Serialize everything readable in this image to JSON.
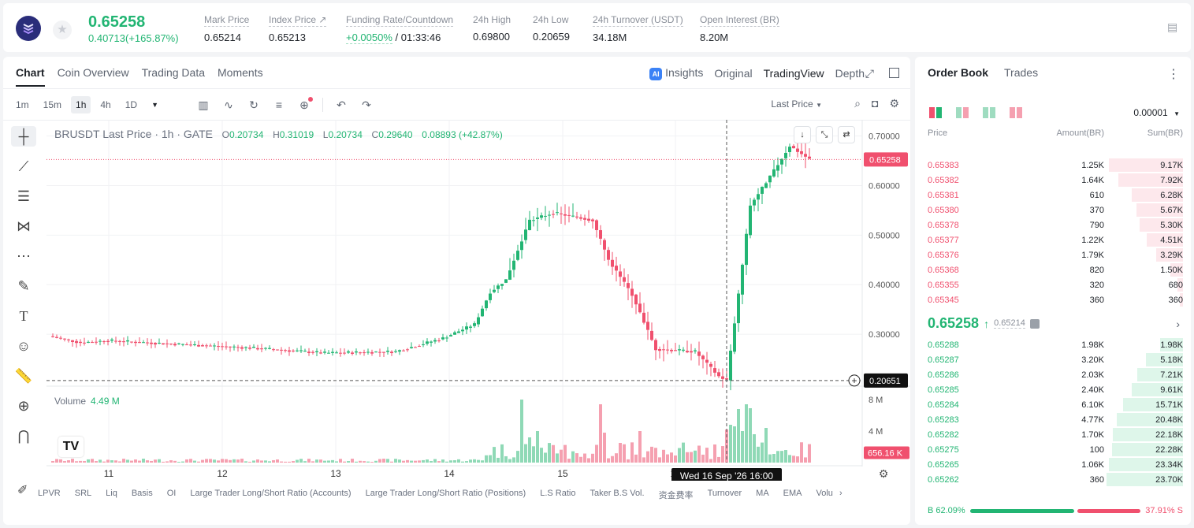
{
  "ticker": {
    "last_price": "0.65258",
    "change": "0.40713(+165.87%)",
    "stats": [
      {
        "label": "Mark Price",
        "value": "0.65214"
      },
      {
        "label": "Index Price ↗",
        "value": "0.65213"
      },
      {
        "label": "Funding Rate/Countdown",
        "value_rate": "+0.0050%",
        "value_count": " / 01:33:46"
      },
      {
        "label": "24h High",
        "value": "0.69800"
      },
      {
        "label": "24h Low",
        "value": "0.20659"
      },
      {
        "label": "24h Turnover (USDT)",
        "value": "34.18M"
      },
      {
        "label": "Open Interest (BR)",
        "value": "8.20M"
      }
    ]
  },
  "chart_tabs": [
    "Chart",
    "Coin Overview",
    "Trading Data",
    "Moments"
  ],
  "view_tabs": {
    "insights": "Insights",
    "original": "Original",
    "tradingview": "TradingView",
    "depth": "Depth"
  },
  "timeframes": [
    "1m",
    "15m",
    "1h",
    "4h",
    "1D"
  ],
  "last_price_select": "Last Price",
  "legend": {
    "title": "BRUSDT Last Price · 1h · GATE",
    "o_label": "O",
    "o": "0.20734",
    "h_label": "H",
    "h": "0.31019",
    "l_label": "L",
    "l": "0.20734",
    "c_label": "C",
    "c": "0.29640",
    "chg": "0.08893 (+42.87%)"
  },
  "volume_legend": {
    "label": "Volume",
    "value": "4.49 M"
  },
  "crosshair_label": "Wed 16 Sep '26   16:00",
  "bottom_indicators": [
    "LPVR",
    "SRL",
    "Liq",
    "Basis",
    "OI",
    "Large Trader Long/Short Ratio (Accounts)",
    "Large Trader Long/Short Ratio (Positions)",
    "L.S Ratio",
    "Taker B.S Vol.",
    "资金费率",
    "Turnover",
    "MA",
    "EMA",
    "Volu"
  ],
  "colors": {
    "up": "#22b573",
    "down": "#f0506e",
    "up_soft": "#8fd9b6",
    "down_soft": "#f5a0b0"
  },
  "chart_data": {
    "type": "candlestick",
    "x_ticks": [
      "11",
      "12",
      "13",
      "14",
      "15",
      "16"
    ],
    "y_ticks": [
      "0.70000",
      "0.60000",
      "0.50000",
      "0.40000",
      "0.30000"
    ],
    "ylim": [
      0.2,
      0.72
    ],
    "volume_ticks": [
      "8 M",
      "4 M"
    ],
    "volume_ylim": [
      0,
      9.5
    ],
    "last_price_label": "0.65258",
    "crosshair_price_label": "0.20651",
    "volume_last_label": "656.16 K",
    "segments": [
      {
        "from": 0,
        "to": 8,
        "start": 0.296,
        "end": 0.283
      },
      {
        "from": 8,
        "to": 15,
        "start": 0.283,
        "end": 0.287
      },
      {
        "from": 15,
        "to": 30,
        "start": 0.287,
        "end": 0.281
      },
      {
        "from": 30,
        "to": 50,
        "start": 0.281,
        "end": 0.273
      },
      {
        "from": 50,
        "to": 70,
        "start": 0.273,
        "end": 0.262
      },
      {
        "from": 70,
        "to": 88,
        "start": 0.262,
        "end": 0.265
      },
      {
        "from": 88,
        "to": 100,
        "start": 0.265,
        "end": 0.292
      },
      {
        "from": 100,
        "to": 108,
        "start": 0.292,
        "end": 0.32
      },
      {
        "from": 108,
        "to": 112,
        "start": 0.32,
        "end": 0.385
      },
      {
        "from": 112,
        "to": 116,
        "start": 0.385,
        "end": 0.41
      },
      {
        "from": 116,
        "to": 122,
        "start": 0.41,
        "end": 0.53
      },
      {
        "from": 122,
        "to": 128,
        "start": 0.53,
        "end": 0.545
      },
      {
        "from": 128,
        "to": 138,
        "start": 0.545,
        "end": 0.53
      },
      {
        "from": 138,
        "to": 142,
        "start": 0.53,
        "end": 0.45
      },
      {
        "from": 142,
        "to": 148,
        "start": 0.45,
        "end": 0.38
      },
      {
        "from": 148,
        "to": 154,
        "start": 0.38,
        "end": 0.27
      },
      {
        "from": 154,
        "to": 164,
        "start": 0.27,
        "end": 0.265
      },
      {
        "from": 164,
        "to": 170,
        "start": 0.265,
        "end": 0.215
      },
      {
        "from": 170,
        "to": 172,
        "start": 0.215,
        "end": 0.207
      },
      {
        "from": 172,
        "to": 175,
        "start": 0.207,
        "end": 0.38
      },
      {
        "from": 175,
        "to": 178,
        "start": 0.38,
        "end": 0.56
      },
      {
        "from": 178,
        "to": 184,
        "start": 0.56,
        "end": 0.63
      },
      {
        "from": 184,
        "to": 188,
        "start": 0.63,
        "end": 0.68
      },
      {
        "from": 188,
        "to": 193,
        "start": 0.68,
        "end": 0.653
      }
    ],
    "volume_spikes": [
      {
        "i": 120,
        "v": 8.0
      },
      {
        "i": 124,
        "v": 4.0
      },
      {
        "i": 122,
        "v": 3.2
      },
      {
        "i": 140,
        "v": 7.4
      },
      {
        "i": 141,
        "v": 3.8
      },
      {
        "i": 150,
        "v": 4.0
      },
      {
        "i": 145,
        "v": 2.5
      },
      {
        "i": 172,
        "v": 4.2
      },
      {
        "i": 173,
        "v": 4.8
      },
      {
        "i": 174,
        "v": 4.6
      },
      {
        "i": 175,
        "v": 6.8
      },
      {
        "i": 176,
        "v": 4.0
      },
      {
        "i": 177,
        "v": 7.4
      },
      {
        "i": 178,
        "v": 6.9
      },
      {
        "i": 179,
        "v": 3.6
      },
      {
        "i": 182,
        "v": 4.4
      }
    ]
  },
  "orderbook": {
    "tabs": {
      "book": "Order Book",
      "trades": "Trades"
    },
    "precision": "0.00001",
    "headers": [
      "Price",
      "Amount(BR)",
      "Sum(BR)"
    ],
    "asks": [
      {
        "price": "0.65383",
        "amount": "1.25K",
        "sum": "9.17K",
        "depth": 0.9
      },
      {
        "price": "0.65382",
        "amount": "1.64K",
        "sum": "7.92K",
        "depth": 0.78
      },
      {
        "price": "0.65381",
        "amount": "610",
        "sum": "6.28K",
        "depth": 0.62
      },
      {
        "price": "0.65380",
        "amount": "370",
        "sum": "5.67K",
        "depth": 0.56
      },
      {
        "price": "0.65378",
        "amount": "790",
        "sum": "5.30K",
        "depth": 0.52
      },
      {
        "price": "0.65377",
        "amount": "1.22K",
        "sum": "4.51K",
        "depth": 0.44
      },
      {
        "price": "0.65376",
        "amount": "1.79K",
        "sum": "3.29K",
        "depth": 0.32
      },
      {
        "price": "0.65368",
        "amount": "820",
        "sum": "1.50K",
        "depth": 0.15
      },
      {
        "price": "0.65355",
        "amount": "320",
        "sum": "680",
        "depth": 0.07
      },
      {
        "price": "0.65345",
        "amount": "360",
        "sum": "360",
        "depth": 0.035
      }
    ],
    "mid_price": "0.65258",
    "mid_arrow": "↑",
    "mark_price": "0.65214",
    "bids": [
      {
        "price": "0.65288",
        "amount": "1.98K",
        "sum": "1.98K",
        "depth": 0.28
      },
      {
        "price": "0.65287",
        "amount": "3.20K",
        "sum": "5.18K",
        "depth": 0.45
      },
      {
        "price": "0.65286",
        "amount": "2.03K",
        "sum": "7.21K",
        "depth": 0.55
      },
      {
        "price": "0.65285",
        "amount": "2.40K",
        "sum": "9.61K",
        "depth": 0.62
      },
      {
        "price": "0.65284",
        "amount": "6.10K",
        "sum": "15.71K",
        "depth": 0.72
      },
      {
        "price": "0.65283",
        "amount": "4.77K",
        "sum": "20.48K",
        "depth": 0.8
      },
      {
        "price": "0.65282",
        "amount": "1.70K",
        "sum": "22.18K",
        "depth": 0.85
      },
      {
        "price": "0.65275",
        "amount": "100",
        "sum": "22.28K",
        "depth": 0.86
      },
      {
        "price": "0.65265",
        "amount": "1.06K",
        "sum": "23.34K",
        "depth": 0.9
      },
      {
        "price": "0.65262",
        "amount": "360",
        "sum": "23.70K",
        "depth": 0.92
      }
    ],
    "buy_ratio": "B  62.09%",
    "sell_ratio": "37.91%  S",
    "buy_fraction": 0.6209
  }
}
